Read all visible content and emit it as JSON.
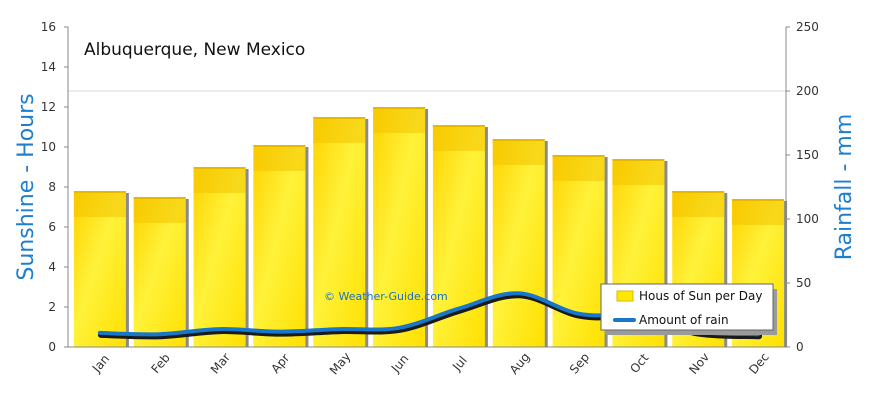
{
  "chart_data": {
    "type": "bar",
    "title": "Albuquerque, New Mexico",
    "credit": "© Weather-Guide.com",
    "categories": [
      "Jan",
      "Feb",
      "Mar",
      "Apr",
      "May",
      "Jun",
      "Jul",
      "Aug",
      "Sep",
      "Oct",
      "Nov",
      "Dec"
    ],
    "series": [
      {
        "name": "Hous of Sun per Day",
        "type": "bar",
        "axis": "left",
        "values": [
          7.8,
          7.5,
          9.0,
          10.1,
          11.5,
          12.0,
          11.1,
          10.4,
          9.6,
          9.4,
          7.8,
          7.4
        ]
      },
      {
        "name": "Amount of rain",
        "type": "line",
        "axis": "right",
        "values": [
          11,
          10,
          14,
          12,
          14,
          15,
          30,
          42,
          26,
          24,
          12,
          10
        ]
      }
    ],
    "ylabel_left": "Sunshine  -  Hours",
    "ylabel_right": "Rainfall  -  mm",
    "ylim_left": [
      0,
      16
    ],
    "yticks_left": [
      "0",
      "2",
      "4",
      "6",
      "8",
      "10",
      "12",
      "14",
      "16"
    ],
    "ylim_right": [
      0,
      250
    ],
    "yticks_right": [
      "0",
      "50",
      "100",
      "150",
      "200",
      "250"
    ],
    "grid": false,
    "legend_position": "bottom-right",
    "colors": {
      "bar": "#ffe800",
      "bar_dark": "#f2c200",
      "line": "#1877c9",
      "axis_title": "#1e7fd0",
      "credit": "#1a6fc0"
    }
  }
}
